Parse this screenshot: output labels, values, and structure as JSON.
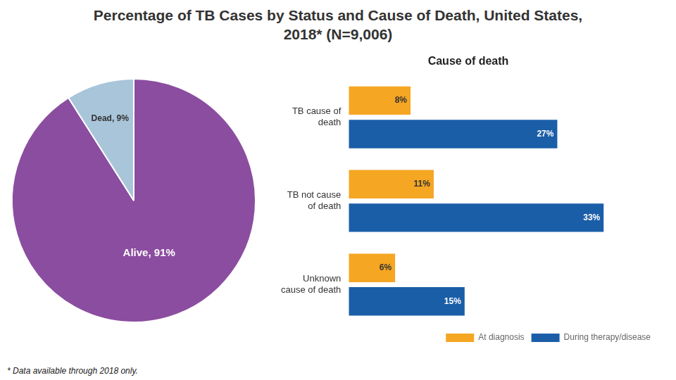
{
  "chart_data": [
    {
      "type": "pie",
      "title": "Percentage of TB Cases by Status and Cause of Death, United States, 2018* (N=9,006)",
      "categories": [
        "Alive",
        "Dead"
      ],
      "values": [
        91,
        9
      ],
      "value_labels": [
        "Alive, 91%",
        "Dead, 9%"
      ],
      "colors": [
        "#8B4DA0",
        "#A8C5DA"
      ],
      "data_labels": true,
      "annotations": [
        "* Data available through 2018 only."
      ]
    },
    {
      "type": "bar",
      "orientation": "horizontal",
      "title": "Cause of death",
      "categories": [
        "TB cause of\ndeath",
        "TB not cause\nof death",
        "Unknown\ncause of death"
      ],
      "series": [
        {
          "name": "At diagnosis",
          "color": "#F5A623",
          "values": [
            8,
            11,
            6
          ],
          "value_labels": [
            "8%",
            "11%",
            "6%"
          ]
        },
        {
          "name": "During therapy/disease",
          "color": "#1B5EA8",
          "values": [
            27,
            33,
            15
          ],
          "value_labels": [
            "27%",
            "33%",
            "15%"
          ]
        }
      ],
      "xlim": [
        0,
        40
      ],
      "data_labels": true,
      "tick_labels": "y",
      "grid": false,
      "legend": "lower right"
    }
  ]
}
